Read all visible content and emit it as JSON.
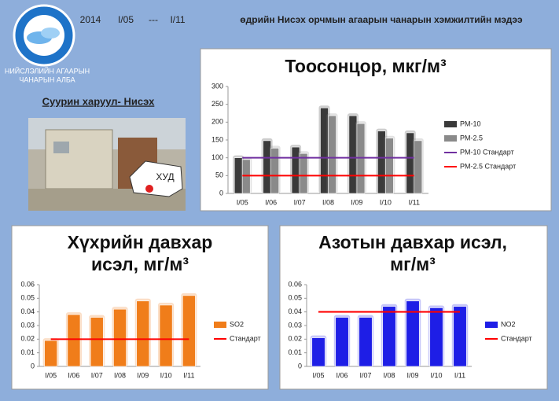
{
  "header": {
    "year": "2014",
    "from": "I/05",
    "separator": "---",
    "to": "I/11",
    "text": "өдрийн Нисэх орчмын агаарын чанарын хэмжилтийн мэдээ"
  },
  "logo": {
    "lines": [
      "НИЙСЛЭЛИЙН АГААРЫН",
      "ЧАНАРЫН АЛБА"
    ]
  },
  "station": {
    "title": "Суурин харуул- Нисэх",
    "map_label": "ХУД"
  },
  "chart_data": [
    {
      "type": "bar",
      "title": [
        "Тоосонцор, мкг/м³"
      ],
      "categories": [
        "I/05",
        "I/06",
        "I/07",
        "I/08",
        "I/09",
        "I/10",
        "I/11"
      ],
      "series": [
        {
          "name": "PM-10",
          "color": "#3a3a3a",
          "values": [
            100,
            148,
            130,
            240,
            218,
            175,
            170
          ]
        },
        {
          "name": "PM-2.5",
          "color": "#8a8a8a",
          "values": [
            95,
            127,
            112,
            218,
            196,
            155,
            148
          ]
        },
        {
          "name": "PM-10 Стандарт",
          "type": "line",
          "color": "#7030a0",
          "values": [
            100,
            100,
            100,
            100,
            100,
            100,
            100
          ]
        },
        {
          "name": "PM-2.5 Стандарт",
          "type": "line",
          "color": "#ff0000",
          "values": [
            50,
            50,
            50,
            50,
            50,
            50,
            50
          ]
        }
      ],
      "ylim": [
        0,
        300
      ],
      "yticks": [
        0,
        50,
        100,
        150,
        200,
        250,
        300
      ],
      "grid": false,
      "legend": "right"
    },
    {
      "type": "bar",
      "title": [
        "Хүхрийн давхар",
        "исэл, мг/м³"
      ],
      "categories": [
        "I/05",
        "I/06",
        "I/07",
        "I/08",
        "I/09",
        "I/10",
        "I/11"
      ],
      "series": [
        {
          "name": "SO2",
          "color": "#f07d1a",
          "values": [
            0.019,
            0.038,
            0.036,
            0.042,
            0.048,
            0.045,
            0.052
          ]
        },
        {
          "name": "Стандарт",
          "type": "line",
          "color": "#ff0000",
          "values": [
            0.02,
            0.02,
            0.02,
            0.02,
            0.02,
            0.02,
            0.02
          ]
        }
      ],
      "ylim": [
        0,
        0.06
      ],
      "yticks": [
        0,
        0.01,
        0.02,
        0.03,
        0.04,
        0.05,
        0.06
      ],
      "grid": false,
      "legend": "right"
    },
    {
      "type": "bar",
      "title": [
        "Азотын давхар исэл,",
        "мг/м³"
      ],
      "categories": [
        "I/05",
        "I/06",
        "I/07",
        "I/08",
        "I/09",
        "I/10",
        "I/11"
      ],
      "series": [
        {
          "name": "NO2",
          "color": "#1e1ee6",
          "values": [
            0.021,
            0.036,
            0.036,
            0.044,
            0.048,
            0.043,
            0.044
          ]
        },
        {
          "name": "Стандарт",
          "type": "line",
          "color": "#ff0000",
          "values": [
            0.04,
            0.04,
            0.04,
            0.04,
            0.04,
            0.04,
            0.04
          ]
        }
      ],
      "ylim": [
        0,
        0.06
      ],
      "yticks": [
        0,
        0.01,
        0.02,
        0.03,
        0.04,
        0.05,
        0.06
      ],
      "grid": false,
      "legend": "right"
    }
  ]
}
